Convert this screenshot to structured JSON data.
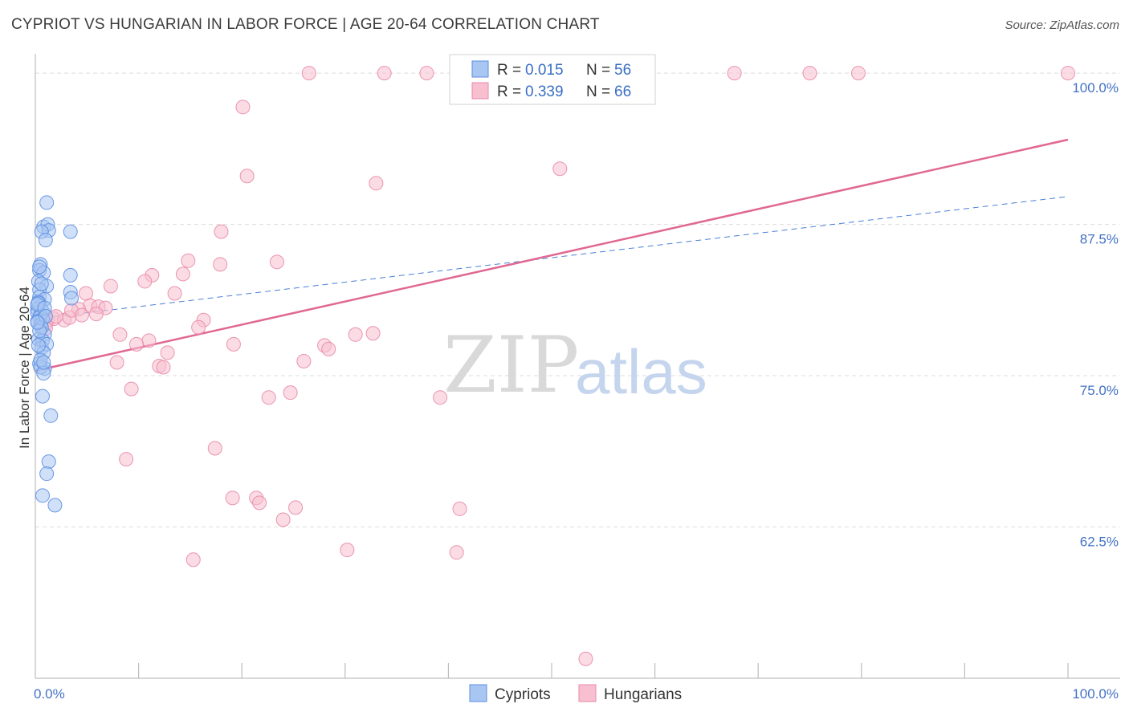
{
  "title": "CYPRIOT VS HUNGARIAN IN LABOR FORCE | AGE 20-64 CORRELATION CHART",
  "source": "Source: ZipAtlas.com",
  "watermark": {
    "zip": "ZIP",
    "atlas": "atlas"
  },
  "legend_top": [
    {
      "r_label": "R = ",
      "r_value": "0.015",
      "n_label": "N = ",
      "n_value": "56"
    },
    {
      "r_label": "R = ",
      "r_value": "0.339",
      "n_label": "N = ",
      "n_value": "66"
    }
  ],
  "legend_bottom": [
    "Cypriots",
    "Hungarians"
  ],
  "colors": {
    "cypriot_fill": "#a9c6f2",
    "cypriot_stroke": "#5b8ee0",
    "cypriot_line": "#4a7fd6",
    "hungarian_fill": "#f7bfd0",
    "hungarian_stroke": "#e88aa8",
    "hungarian_line": "#e06893",
    "value_blue": "#3a6fc4",
    "grid": "#dddddd"
  },
  "chart_data": {
    "type": "scatter",
    "title": "CYPRIOT VS HUNGARIAN IN LABOR FORCE | AGE 20-64 CORRELATION CHART",
    "xlabel": "",
    "ylabel": "In Labor Force | Age 20-64",
    "xlim": [
      0,
      100
    ],
    "ylim": [
      50,
      101.2
    ],
    "x_tick_labels": [
      {
        "value": 0,
        "label": "0.0%"
      },
      {
        "value": 100,
        "label": "100.0%"
      }
    ],
    "y_ticks": [
      {
        "value": 100,
        "label": "100.0%"
      },
      {
        "value": 87.5,
        "label": "87.5%"
      },
      {
        "value": 75,
        "label": "75.0%"
      },
      {
        "value": 62.5,
        "label": "62.5%"
      }
    ],
    "grid": true,
    "legend_position": "top-center",
    "series": [
      {
        "name": "Cypriots",
        "r": 0.015,
        "n": 56,
        "trend": {
          "x": [
            0,
            100
          ],
          "y": [
            79.7,
            89.8
          ],
          "style": "dashed"
        },
        "points": [
          [
            1.1,
            89.3
          ],
          [
            0.8,
            87.3
          ],
          [
            1.2,
            87.5
          ],
          [
            1.3,
            87.0
          ],
          [
            3.4,
            86.9
          ],
          [
            0.6,
            86.9
          ],
          [
            1.0,
            86.2
          ],
          [
            0.5,
            84.2
          ],
          [
            0.4,
            83.7
          ],
          [
            0.8,
            83.5
          ],
          [
            3.4,
            83.3
          ],
          [
            0.3,
            82.8
          ],
          [
            1.1,
            82.4
          ],
          [
            0.4,
            82.1
          ],
          [
            3.4,
            81.9
          ],
          [
            0.4,
            81.5
          ],
          [
            0.9,
            81.3
          ],
          [
            3.5,
            81.4
          ],
          [
            0.3,
            81.1
          ],
          [
            0.5,
            80.7
          ],
          [
            0.7,
            80.3
          ],
          [
            0.2,
            80.5
          ],
          [
            0.2,
            80.2
          ],
          [
            0.5,
            80.0
          ],
          [
            0.4,
            79.8
          ],
          [
            0.7,
            79.7
          ],
          [
            0.2,
            79.5
          ],
          [
            0.5,
            79.2
          ],
          [
            0.9,
            78.4
          ],
          [
            0.3,
            78.0
          ],
          [
            0.7,
            77.9
          ],
          [
            0.6,
            77.3
          ],
          [
            1.1,
            77.6
          ],
          [
            0.8,
            76.9
          ],
          [
            0.4,
            76.0
          ],
          [
            0.9,
            75.6
          ],
          [
            0.5,
            75.7
          ],
          [
            0.8,
            75.2
          ],
          [
            0.7,
            73.3
          ],
          [
            1.5,
            71.7
          ],
          [
            1.3,
            67.9
          ],
          [
            1.1,
            66.9
          ],
          [
            0.7,
            65.1
          ],
          [
            1.9,
            64.3
          ],
          [
            0.3,
            81.0
          ],
          [
            0.6,
            79.0
          ],
          [
            0.4,
            78.7
          ],
          [
            0.2,
            80.9
          ],
          [
            0.9,
            80.6
          ],
          [
            0.5,
            76.3
          ],
          [
            0.8,
            76.1
          ],
          [
            0.3,
            77.5
          ],
          [
            1.0,
            79.9
          ],
          [
            0.6,
            82.6
          ],
          [
            0.4,
            84.0
          ],
          [
            0.2,
            79.4
          ]
        ]
      },
      {
        "name": "Hungarians",
        "r": 0.339,
        "n": 66,
        "trend": {
          "x": [
            0,
            100
          ],
          "y": [
            75.4,
            94.5
          ],
          "style": "solid"
        },
        "points": [
          [
            26.5,
            100.0
          ],
          [
            33.8,
            100.0
          ],
          [
            37.9,
            100.0
          ],
          [
            67.7,
            100.0
          ],
          [
            75.0,
            100.0
          ],
          [
            79.7,
            100.0
          ],
          [
            100.0,
            100.0
          ],
          [
            20.1,
            97.2
          ],
          [
            20.5,
            91.5
          ],
          [
            33.0,
            90.9
          ],
          [
            50.8,
            92.1
          ],
          [
            18.0,
            86.9
          ],
          [
            14.8,
            84.5
          ],
          [
            23.4,
            84.4
          ],
          [
            17.9,
            84.2
          ],
          [
            11.3,
            83.3
          ],
          [
            14.3,
            83.4
          ],
          [
            10.6,
            82.8
          ],
          [
            7.3,
            82.4
          ],
          [
            4.9,
            81.8
          ],
          [
            13.5,
            81.8
          ],
          [
            5.3,
            80.8
          ],
          [
            6.1,
            80.7
          ],
          [
            6.8,
            80.6
          ],
          [
            4.2,
            80.5
          ],
          [
            5.9,
            80.1
          ],
          [
            16.3,
            79.6
          ],
          [
            1.2,
            79.6
          ],
          [
            1.8,
            79.7
          ],
          [
            2.8,
            79.6
          ],
          [
            3.3,
            79.8
          ],
          [
            1.0,
            79.3
          ],
          [
            15.8,
            79.0
          ],
          [
            8.2,
            78.4
          ],
          [
            1.0,
            78.9
          ],
          [
            31.0,
            78.4
          ],
          [
            32.7,
            78.5
          ],
          [
            11.0,
            77.9
          ],
          [
            9.8,
            77.6
          ],
          [
            19.2,
            77.6
          ],
          [
            28.0,
            77.5
          ],
          [
            28.4,
            77.2
          ],
          [
            12.8,
            76.9
          ],
          [
            7.9,
            76.1
          ],
          [
            26.0,
            76.2
          ],
          [
            12.0,
            75.8
          ],
          [
            12.4,
            75.7
          ],
          [
            9.3,
            73.9
          ],
          [
            24.7,
            73.6
          ],
          [
            22.6,
            73.2
          ],
          [
            39.2,
            73.2
          ],
          [
            17.4,
            69.0
          ],
          [
            8.8,
            68.1
          ],
          [
            19.1,
            64.9
          ],
          [
            21.4,
            64.9
          ],
          [
            21.7,
            64.5
          ],
          [
            25.2,
            64.1
          ],
          [
            41.1,
            64.0
          ],
          [
            24.0,
            63.1
          ],
          [
            30.2,
            60.6
          ],
          [
            40.8,
            60.4
          ],
          [
            15.3,
            59.8
          ],
          [
            53.3,
            51.6
          ],
          [
            3.5,
            80.4
          ],
          [
            2.0,
            79.9
          ],
          [
            4.5,
            80.0
          ]
        ]
      }
    ]
  }
}
